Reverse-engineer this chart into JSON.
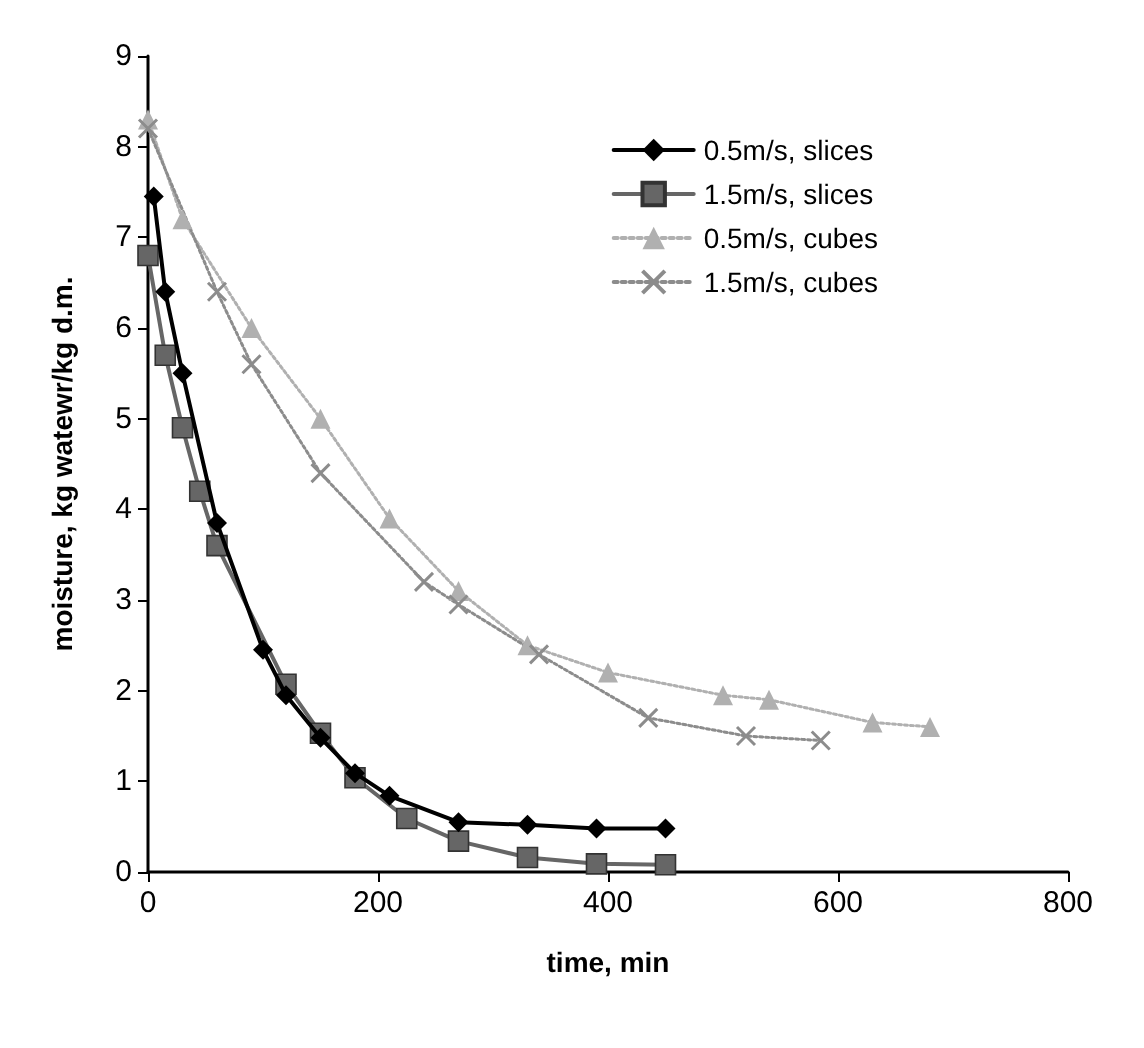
{
  "chart_data": {
    "type": "line",
    "xlabel": "time, min",
    "ylabel": "moisture, kg watewr/kg d.m.",
    "xlim": [
      0,
      800
    ],
    "xticks": [
      0,
      200,
      400,
      600,
      800
    ],
    "ylim": [
      0,
      9
    ],
    "yticks": [
      0,
      1,
      2,
      3,
      4,
      5,
      6,
      7,
      8,
      9
    ],
    "grid": false,
    "legend": "top right",
    "series": [
      {
        "name": "0.5m/s, slices",
        "color": "#000000",
        "marker": "diamond",
        "line_style": "solid",
        "x": [
          5,
          15,
          30,
          60,
          100,
          120,
          150,
          180,
          210,
          270,
          330,
          390,
          450
        ],
        "values": [
          7.45,
          6.4,
          5.5,
          3.85,
          2.45,
          1.95,
          1.48,
          1.09,
          0.84,
          0.55,
          0.52,
          0.48,
          0.48
        ]
      },
      {
        "name": "1.5m/s, slices",
        "color": "#666666",
        "marker": "square",
        "line_style": "solid",
        "x": [
          0,
          15,
          30,
          45,
          60,
          120,
          150,
          180,
          225,
          270,
          330,
          390,
          450
        ],
        "values": [
          6.8,
          5.7,
          4.9,
          4.2,
          3.6,
          2.07,
          1.53,
          1.04,
          0.59,
          0.34,
          0.16,
          0.09,
          0.08
        ]
      },
      {
        "name": "0.5m/s, cubes",
        "color": "#b0b0b0",
        "marker": "triangle",
        "line_style": "dotted",
        "x": [
          0,
          30,
          90,
          150,
          210,
          270,
          330,
          400,
          500,
          540,
          630,
          680
        ],
        "values": [
          8.3,
          7.2,
          6.0,
          5.0,
          3.9,
          3.1,
          2.5,
          2.2,
          1.95,
          1.9,
          1.65,
          1.6
        ]
      },
      {
        "name": "1.5m/s, cubes",
        "color": "#8c8c8c",
        "marker": "cross",
        "line_style": "dotted",
        "x": [
          0,
          60,
          90,
          150,
          240,
          270,
          340,
          435,
          520,
          585
        ],
        "values": [
          8.2,
          6.4,
          5.6,
          4.4,
          3.2,
          2.95,
          2.4,
          1.7,
          1.5,
          1.45
        ]
      }
    ]
  }
}
